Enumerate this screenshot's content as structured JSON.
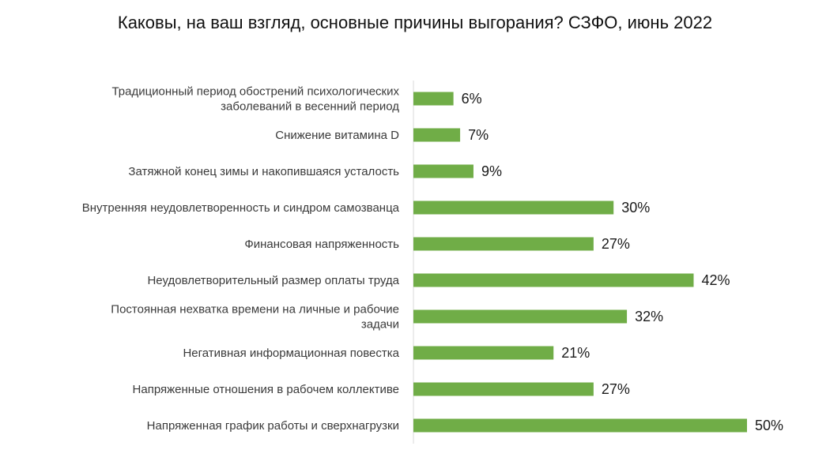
{
  "chart_data": {
    "type": "bar",
    "orientation": "horizontal",
    "title": "Каковы, на ваш взгляд, основные причины выгорания? СЗФО, июнь 2022",
    "bar_color": "#70ad47",
    "value_suffix": "%",
    "xlim": [
      0,
      50
    ],
    "grid": false,
    "legend": "none",
    "categories": [
      [
        "Традиционный период обострений психологических",
        "заболеваний в весенний период"
      ],
      [
        "Снижение витамина D"
      ],
      [
        "Затяжной конец зимы и накопившаяся усталость"
      ],
      [
        "Внутренняя неудовлетворенность и синдром самозванца"
      ],
      [
        "Финансовая напряженность"
      ],
      [
        "Неудовлетворительный размер оплаты труда"
      ],
      [
        "Постоянная нехватка времени на личные и рабочие",
        "задачи"
      ],
      [
        "Негативная информационная повестка"
      ],
      [
        "Напряженные отношения в рабочем коллективе"
      ],
      [
        "Напряженная график работы и сверхнагрузки"
      ]
    ],
    "values": [
      6,
      7,
      9,
      30,
      27,
      42,
      32,
      21,
      27,
      50
    ],
    "value_labels": [
      "6%",
      "7%",
      "9%",
      "30%",
      "27%",
      "42%",
      "32%",
      "21%",
      "27%",
      "50%"
    ]
  }
}
